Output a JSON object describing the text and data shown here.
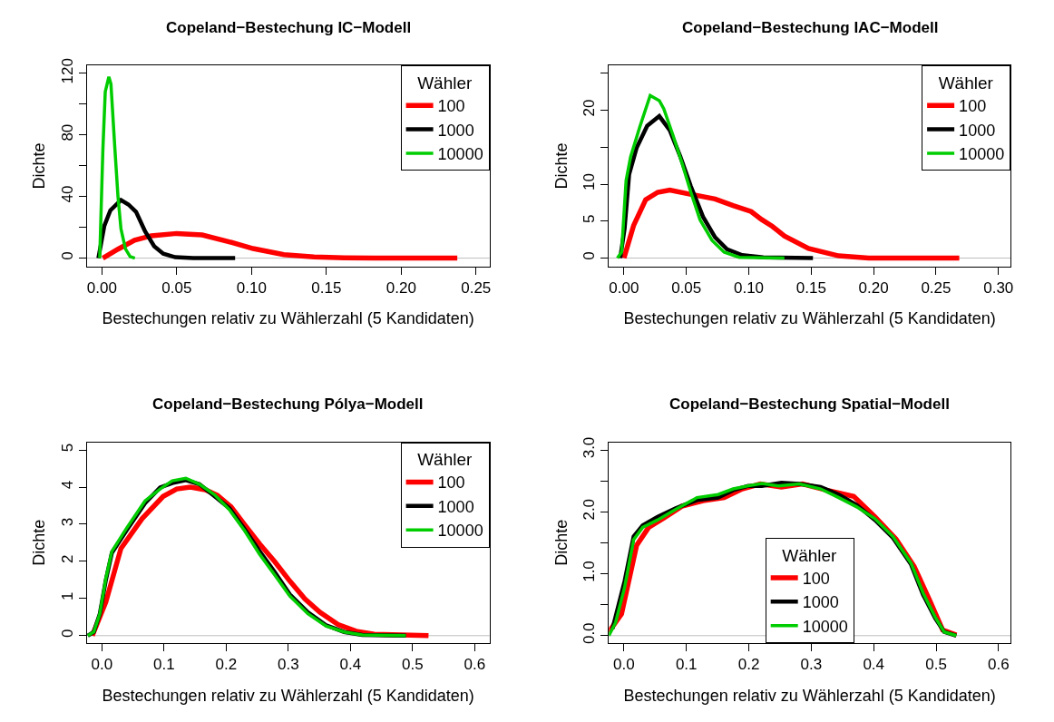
{
  "chart_data": [
    {
      "type": "line",
      "title": "Copeland−Bestechung IC−Modell",
      "xlabel": "Bestechungen relativ zu Wählerzahl (5 Kandidaten)",
      "ylabel": "Dichte",
      "legend_title": "Wähler",
      "legend": "top right",
      "grid": false,
      "xlim": [
        -0.0101,
        0.259
      ],
      "ylim": [
        -5.4,
        125
      ],
      "xticks": [
        {
          "value": 0,
          "label": "0.00"
        },
        0.05,
        {
          "value": 0.1,
          "label": "0.10"
        },
        0.15,
        {
          "value": 0.2,
          "label": "0.20"
        },
        0.25
      ],
      "yticks": [
        0,
        {
          "value": 20,
          "label": null
        },
        40,
        {
          "value": 60,
          "label": null
        },
        80,
        {
          "value": 100,
          "label": null
        },
        120
      ],
      "ref_lines": [
        {
          "axis": "y",
          "value": 0,
          "color": "#bebebe"
        }
      ],
      "series": [
        {
          "name": "100",
          "color": "#ff0000",
          "x": [
            0.0006,
            0.0107,
            0.0218,
            0.033,
            0.05,
            0.067,
            0.085,
            0.101,
            0.1216,
            0.1417,
            0.162,
            0.182,
            0.2375
          ],
          "values": [
            0,
            5.8,
            11.6,
            14.5,
            16,
            15,
            10.6,
            6.2,
            2.3,
            0.8,
            0.2,
            0,
            0
          ]
        },
        {
          "name": "1000",
          "color": "#000000",
          "x": [
            -0.0024,
            0.0016,
            0.0056,
            0.0127,
            0.0177,
            0.0228,
            0.0288,
            0.0349,
            0.041,
            0.049,
            0.061,
            0.089
          ],
          "values": [
            0,
            21,
            31,
            37.7,
            34.8,
            30,
            17.4,
            7.7,
            2.9,
            0.6,
            0,
            0
          ]
        },
        {
          "name": "10000",
          "color": "#00cd00",
          "x": [
            -0.0015,
            0.0006,
            0.0022,
            0.0046,
            0.006,
            0.0087,
            0.0107,
            0.0127,
            0.0157,
            0.0188,
            0.022
          ],
          "values": [
            0,
            70,
            108,
            117.7,
            113,
            70,
            40,
            19,
            6,
            1,
            0
          ]
        }
      ]
    },
    {
      "type": "line",
      "title": "Copeland−Bestechung IAC−Modell",
      "xlabel": "Bestechungen relativ zu Wählerzahl (5 Kandidaten)",
      "ylabel": "Dichte",
      "legend_title": "Wähler",
      "legend": "top right",
      "grid": false,
      "xlim": [
        -0.0121,
        0.3097
      ],
      "ylim": [
        -1.13,
        26.05
      ],
      "xticks": [
        {
          "value": 0,
          "label": "0.00"
        },
        0.05,
        {
          "value": 0.1,
          "label": "0.10"
        },
        0.15,
        {
          "value": 0.2,
          "label": "0.20"
        },
        0.25,
        {
          "value": 0.3,
          "label": "0.30"
        }
      ],
      "yticks": [
        0,
        5,
        10,
        {
          "value": 15,
          "label": null
        },
        20,
        {
          "value": 25,
          "label": null
        }
      ],
      "ref_lines": [
        {
          "axis": "y",
          "value": 0,
          "color": "#bebebe"
        }
      ],
      "series": [
        {
          "name": "100",
          "color": "#ff0000",
          "x": [
            0,
            0.0077,
            0.0174,
            0.027,
            0.0367,
            0.0512,
            0.073,
            0.0874,
            0.1019,
            0.1104,
            0.1188,
            0.1285,
            0.1478,
            0.172,
            0.1961,
            0.2686
          ],
          "values": [
            0,
            4.4,
            7.9,
            8.9,
            9.2,
            8.7,
            8,
            7.1,
            6.3,
            5.2,
            4.3,
            3,
            1.3,
            0.3,
            0,
            0
          ]
        },
        {
          "name": "1000",
          "color": "#000000",
          "x": [
            -0.003,
            0.0005,
            0.0041,
            0.0101,
            0.0186,
            0.0283,
            0.0367,
            0.0452,
            0.0536,
            0.0633,
            0.073,
            0.0826,
            0.0947,
            0.1116,
            0.1514
          ],
          "values": [
            0,
            4,
            11.3,
            14.9,
            17.9,
            19.2,
            17.3,
            13.7,
            9.7,
            5.6,
            2.8,
            1.2,
            0.4,
            0.1,
            0
          ]
        },
        {
          "name": "10000",
          "color": "#00cd00",
          "x": [
            -0.0053,
            -0.0019,
            0.0017,
            0.0053,
            0.0126,
            0.021,
            0.0283,
            0.0319,
            0.0391,
            0.0464,
            0.0536,
            0.0609,
            0.0705,
            0.0802,
            0.0923,
            0.1285
          ],
          "values": [
            0,
            0.8,
            10.5,
            13.7,
            17.7,
            22,
            21.3,
            20.2,
            16.7,
            12.9,
            8.9,
            5.2,
            2.4,
            0.8,
            0.1,
            0
          ]
        }
      ]
    },
    {
      "type": "line",
      "title": "Copeland−Bestechung Pólya−Modell",
      "xlabel": "Bestechungen relativ zu Wählerzahl (5 Kandidaten)",
      "ylabel": "Dichte",
      "legend_title": "Wähler",
      "legend": "top right",
      "grid": false,
      "xlim": [
        -0.0243,
        0.6238
      ],
      "ylim": [
        -0.2,
        5.21
      ],
      "xticks": [
        {
          "value": 0,
          "label": "0.0"
        },
        0.1,
        0.2,
        0.3,
        0.4,
        0.5,
        0.6
      ],
      "yticks": [
        0,
        1,
        2,
        3,
        4,
        5
      ],
      "ref_lines": [
        {
          "axis": "y",
          "value": 0,
          "color": "#bebebe"
        }
      ],
      "series": [
        {
          "name": "100",
          "color": "#ff0000",
          "x": [
            -0.0155,
            0.0063,
            0.0306,
            0.0646,
            0.0985,
            0.1204,
            0.1422,
            0.1665,
            0.1859,
            0.2078,
            0.2296,
            0.2539,
            0.2782,
            0.3024,
            0.3267,
            0.351,
            0.3801,
            0.4092,
            0.4383,
            0.5257
          ],
          "values": [
            0,
            0.91,
            2.35,
            3.15,
            3.75,
            3.95,
            4.0,
            3.93,
            3.78,
            3.47,
            2.99,
            2.47,
            1.99,
            1.47,
            0.99,
            0.63,
            0.3,
            0.12,
            0.04,
            0
          ]
        },
        {
          "name": "1000",
          "color": "#000000",
          "x": [
            -0.0228,
            -0.0131,
            -0.0034,
            0.0063,
            0.016,
            0.0403,
            0.0694,
            0.0937,
            0.1131,
            0.135,
            0.1568,
            0.1811,
            0.2053,
            0.2296,
            0.2539,
            0.2782,
            0.3024,
            0.3316,
            0.3607,
            0.3898,
            0.419,
            0.4893
          ],
          "values": [
            0,
            0.1,
            0.59,
            1.5,
            2.23,
            2.85,
            3.57,
            3.99,
            4.11,
            4.19,
            4.08,
            3.76,
            3.43,
            2.87,
            2.27,
            1.71,
            1.11,
            0.63,
            0.28,
            0.1,
            0.02,
            0
          ]
        },
        {
          "name": "10000",
          "color": "#00cd00",
          "x": [
            -0.0228,
            -0.0131,
            -0.0034,
            0.0063,
            0.016,
            0.0403,
            0.0694,
            0.0937,
            0.1131,
            0.135,
            0.1568,
            0.1811,
            0.2053,
            0.2296,
            0.2539,
            0.2782,
            0.3024,
            0.3316,
            0.3607,
            0.3898,
            0.419,
            0.4893
          ],
          "values": [
            0,
            0.1,
            0.59,
            1.55,
            2.27,
            2.91,
            3.63,
            3.95,
            4.17,
            4.24,
            4.08,
            3.8,
            3.39,
            2.83,
            2.19,
            1.63,
            1.07,
            0.59,
            0.26,
            0.1,
            0.02,
            0
          ]
        }
      ]
    },
    {
      "type": "line",
      "title": "Copeland−Bestechung Spatial−Modell",
      "xlabel": "Bestechungen relativ zu Wählerzahl (5 Kandidaten)",
      "ylabel": "Dichte",
      "legend_title": "Wähler",
      "legend": "bottom",
      "grid": false,
      "xlim": [
        -0.0242,
        0.6193
      ],
      "ylim": [
        -0.12,
        3.125
      ],
      "xticks": [
        {
          "value": 0,
          "label": "0.0"
        },
        0.1,
        0.2,
        0.3,
        0.4,
        0.5,
        0.6
      ],
      "yticks": [
        {
          "value": 0,
          "label": "0.0"
        },
        {
          "value": 0.5,
          "label": null
        },
        {
          "value": 1,
          "label": "1.0"
        },
        {
          "value": 1.5,
          "label": null
        },
        {
          "value": 2,
          "label": "2.0"
        },
        {
          "value": 2.5,
          "label": null
        },
        {
          "value": 3,
          "label": "3.0"
        }
      ],
      "ref_lines": [
        {
          "axis": "y",
          "value": 0,
          "color": "#bebebe"
        }
      ],
      "series": [
        {
          "name": "100",
          "color": "#ff0000",
          "x": [
            -0.0242,
            -0.0039,
            0.0203,
            0.0396,
            0.0638,
            0.0928,
            0.1266,
            0.1604,
            0.1894,
            0.2184,
            0.2522,
            0.286,
            0.3246,
            0.3681,
            0.4019,
            0.4357,
            0.4647,
            0.4889,
            0.5106,
            0.5324
          ],
          "values": [
            0.06,
            0.35,
            1.46,
            1.75,
            1.9,
            2.09,
            2.18,
            2.23,
            2.37,
            2.45,
            2.4,
            2.45,
            2.35,
            2.25,
            1.92,
            1.56,
            1.12,
            0.59,
            0.09,
            0.01
          ]
        },
        {
          "name": "1000",
          "color": "#000000",
          "x": [
            -0.0184,
            0.001,
            0.0155,
            0.03,
            0.0541,
            0.0831,
            0.1169,
            0.1507,
            0.1749,
            0.199,
            0.2208,
            0.2522,
            0.2812,
            0.315,
            0.344,
            0.3729,
            0.4019,
            0.4309,
            0.4599,
            0.4792,
            0.4986,
            0.513,
            0.5324
          ],
          "values": [
            0.11,
            0.88,
            1.6,
            1.78,
            1.92,
            2.06,
            2.19,
            2.23,
            2.35,
            2.42,
            2.42,
            2.47,
            2.45,
            2.4,
            2.28,
            2.11,
            1.87,
            1.58,
            1.15,
            0.66,
            0.28,
            0.06,
            0
          ]
        },
        {
          "name": "10000",
          "color": "#00cd00",
          "x": [
            -0.0242,
            -0.0135,
            0.001,
            0.0155,
            0.03,
            0.0541,
            0.0831,
            0.1169,
            0.1507,
            0.1749,
            0.199,
            0.2208,
            0.2473,
            0.2812,
            0.315,
            0.344,
            0.3729,
            0.4019,
            0.4309,
            0.4599,
            0.4792,
            0.4986,
            0.513,
            0.5324
          ],
          "values": [
            0,
            0.21,
            0.78,
            1.55,
            1.75,
            1.87,
            2.04,
            2.23,
            2.28,
            2.37,
            2.42,
            2.46,
            2.42,
            2.45,
            2.37,
            2.23,
            2.08,
            1.89,
            1.6,
            1.17,
            0.69,
            0.3,
            0.06,
            0
          ]
        }
      ]
    }
  ]
}
